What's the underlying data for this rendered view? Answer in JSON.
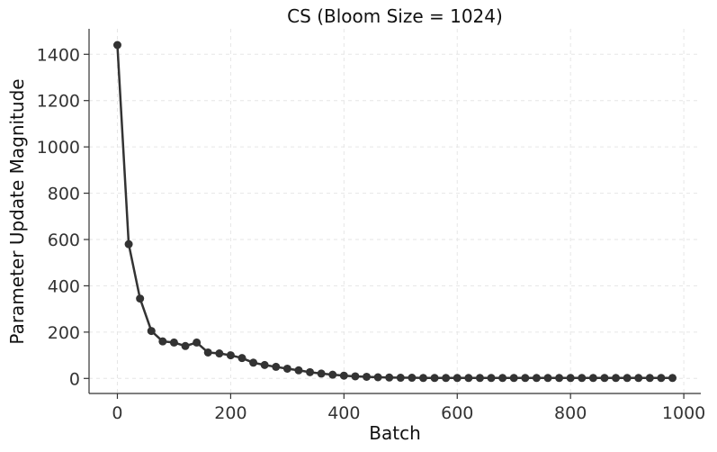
{
  "chart_data": {
    "type": "line",
    "title": "CS (Bloom Size = 1024)",
    "xlabel": "Batch",
    "ylabel": "Parameter Update Magnitude",
    "xlim": [
      -50,
      1030
    ],
    "ylim": [
      -65,
      1510
    ],
    "xticks": [
      0,
      200,
      400,
      600,
      800,
      1000
    ],
    "yticks": [
      0,
      200,
      400,
      600,
      800,
      1000,
      1200,
      1400
    ],
    "grid": true,
    "line_color": "#333333",
    "x": [
      0,
      20,
      40,
      60,
      80,
      100,
      120,
      140,
      160,
      180,
      200,
      220,
      240,
      260,
      280,
      300,
      320,
      340,
      360,
      380,
      400,
      420,
      440,
      460,
      480,
      500,
      520,
      540,
      560,
      580,
      600,
      620,
      640,
      660,
      680,
      700,
      720,
      740,
      760,
      780,
      800,
      820,
      840,
      860,
      880,
      900,
      920,
      940,
      960,
      980
    ],
    "series": [
      {
        "values": [
          1440,
          580,
          345,
          205,
          160,
          155,
          140,
          155,
          112,
          108,
          100,
          88,
          68,
          58,
          50,
          42,
          35,
          27,
          21,
          16,
          12,
          9,
          7,
          5,
          4,
          3,
          3,
          2,
          2,
          2,
          2,
          2,
          2,
          2,
          2,
          2,
          2,
          2,
          2,
          2,
          2,
          2,
          2,
          2,
          2,
          2,
          2,
          2,
          2,
          2
        ]
      }
    ]
  }
}
